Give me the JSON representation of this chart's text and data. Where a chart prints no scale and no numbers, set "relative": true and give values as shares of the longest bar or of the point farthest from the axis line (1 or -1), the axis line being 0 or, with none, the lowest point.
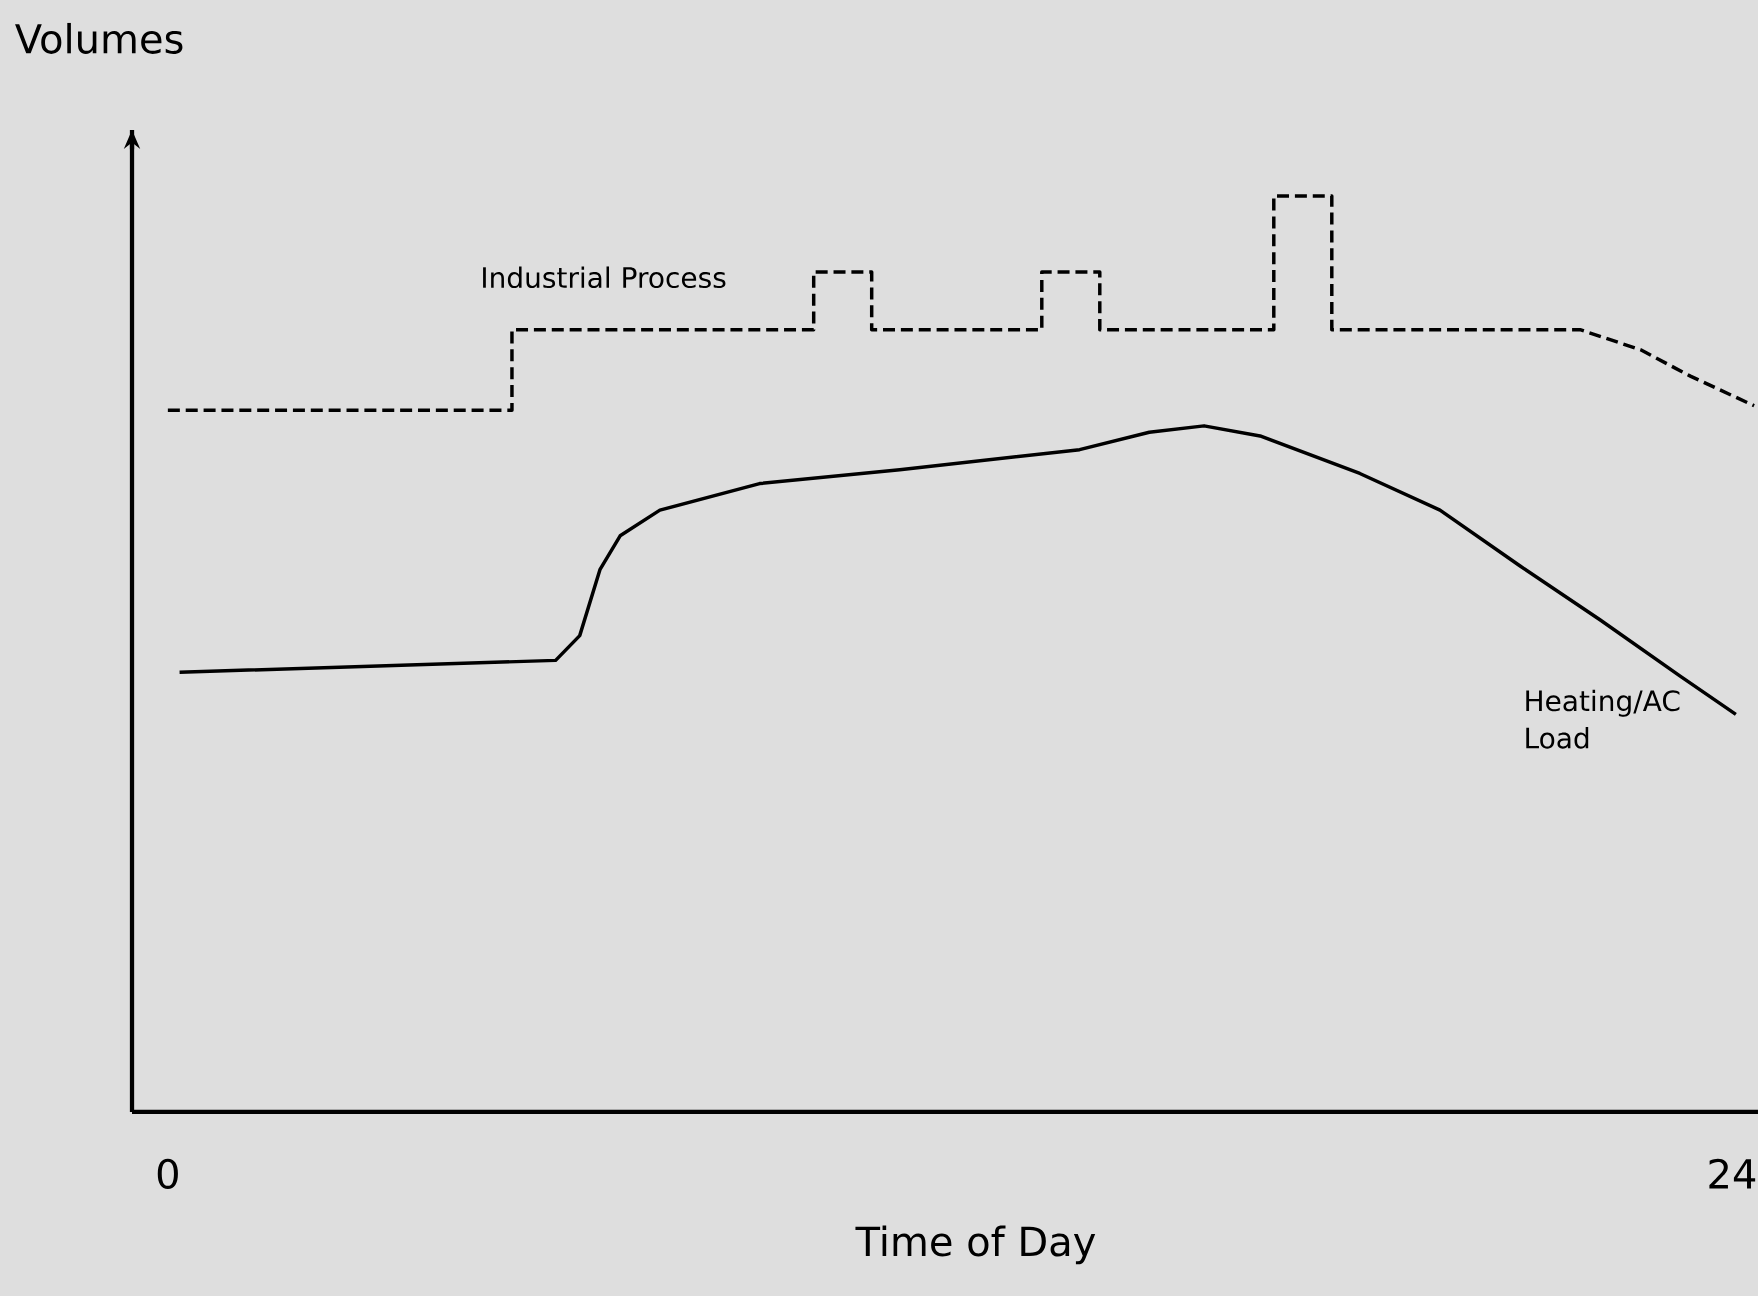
{
  "chart_data": {
    "type": "line",
    "relative": true,
    "xlabel": "Time of Day",
    "ylabel": "Volumes",
    "xlim": [
      -0.55,
      24.4
    ],
    "xticks": [
      0,
      24
    ],
    "grid": false,
    "series": [
      {
        "name": "Industrial Process",
        "color": "#000000",
        "line_style": "dashed",
        "x": [
          0,
          5.28,
          5.28,
          9.91,
          9.91,
          10.8,
          10.8,
          13.41,
          13.41,
          14.3,
          14.3,
          16.97,
          16.97,
          17.86,
          17.86,
          21.67,
          22.6,
          23.37,
          24.34
        ],
        "values": [
          0.766,
          0.766,
          0.854,
          0.854,
          0.917,
          0.917,
          0.854,
          0.854,
          0.917,
          0.917,
          0.854,
          0.854,
          1,
          1,
          0.854,
          0.854,
          0.832,
          0.803,
          0.771
        ]
      },
      {
        "name": "Heating/AC Load",
        "color": "#000000",
        "line_style": "solid",
        "x": [
          0.18,
          5.95,
          6.32,
          6.63,
          6.94,
          7.55,
          9.08,
          11.23,
          13.99,
          15.06,
          15.9,
          16.76,
          18.29,
          19.52,
          20.75,
          21.98,
          23.2,
          24.06
        ],
        "values": [
          0.48,
          0.493,
          0.52,
          0.592,
          0.629,
          0.657,
          0.686,
          0.701,
          0.723,
          0.742,
          0.749,
          0.738,
          0.697,
          0.657,
          0.596,
          0.537,
          0.476,
          0.434
        ]
      }
    ]
  }
}
